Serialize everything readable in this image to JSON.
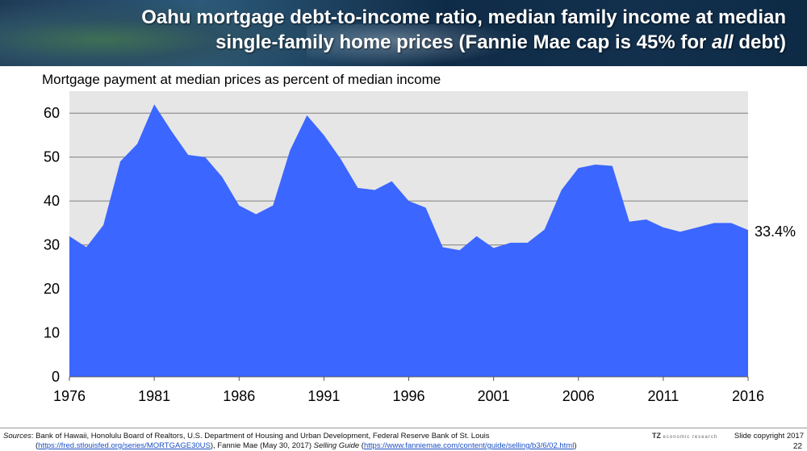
{
  "header": {
    "title_line1": "Oahu mortgage debt-to-income ratio, median family income at median",
    "title_line2_prefix": "single-family home prices (Fannie Mae cap is 45% for ",
    "title_line2_emph": "all",
    "title_line2_suffix": " debt)"
  },
  "chart_data": {
    "type": "area",
    "title": "Mortgage payment at median prices as percent of median income",
    "xlabel": "",
    "ylabel": "",
    "ylim": [
      0,
      65
    ],
    "xlim": [
      1976,
      2016
    ],
    "grid": true,
    "color": "#3b66ff",
    "plot_background": "#e6e6e6",
    "x_ticks": [
      "1976",
      "1981",
      "1986",
      "1991",
      "1996",
      "2001",
      "2006",
      "2011",
      "2016"
    ],
    "y_ticks": [
      "0",
      "10",
      "20",
      "30",
      "40",
      "50",
      "60"
    ],
    "x": [
      1976,
      1977,
      1978,
      1979,
      1980,
      1981,
      1982,
      1983,
      1984,
      1985,
      1986,
      1987,
      1988,
      1989,
      1990,
      1991,
      1992,
      1993,
      1994,
      1995,
      1996,
      1997,
      1998,
      1999,
      2000,
      2001,
      2002,
      2003,
      2004,
      2005,
      2006,
      2007,
      2008,
      2009,
      2010,
      2011,
      2012,
      2013,
      2014,
      2015,
      2016
    ],
    "values": [
      32.0,
      29.5,
      34.5,
      49.0,
      53.0,
      62.0,
      56.0,
      50.5,
      50.0,
      45.5,
      39.0,
      37.0,
      39.0,
      51.5,
      59.5,
      55.0,
      49.5,
      43.0,
      42.5,
      44.5,
      40.0,
      38.5,
      29.5,
      28.8,
      32.0,
      29.3,
      30.5,
      30.5,
      33.5,
      42.5,
      47.5,
      48.3,
      48.0,
      35.3,
      35.8,
      34.0,
      33.0,
      34.0,
      35.0,
      35.0,
      33.4
    ],
    "end_label": "33.4%"
  },
  "footer": {
    "sources_key": "Sources",
    "sources_text": ":  Bank of Hawaii, Honolulu Board of Realtors, U.S. Department of Housing and Urban Development, Federal Reserve Bank of St. Louis",
    "line2_open": "(",
    "link1": "https://fred.stlouisfed.org/series/MORTGAGE30US",
    "line2_mid": "), Fannie Mae (May 30, 2017) ",
    "guide_title": "Selling Guide",
    "line2_mid2": " (",
    "link2": "https://www.fanniemae.com/content/guide/selling/b3/6/02.html",
    "line2_close": ")",
    "brand": "TZ",
    "brand_tagline": "economic research",
    "copyright": "Slide copyright 2017",
    "page_number": "22"
  }
}
